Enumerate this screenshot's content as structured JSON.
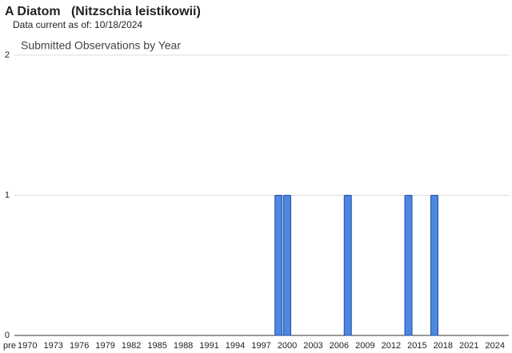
{
  "chart_data": {
    "type": "bar",
    "title": "A Diatom   (Nitzschia leistikowii)",
    "subtitle": "Data current as of: 10/18/2024",
    "chart_title": "Submitted Observations by Year",
    "categories": [
      "pre",
      "1970",
      null,
      null,
      "1973",
      null,
      null,
      "1976",
      null,
      null,
      "1979",
      null,
      null,
      "1982",
      null,
      null,
      "1985",
      null,
      null,
      "1988",
      null,
      null,
      "1991",
      null,
      null,
      "1994",
      null,
      null,
      "1997",
      null,
      null,
      "2000",
      null,
      null,
      "2003",
      null,
      null,
      "2006",
      null,
      null,
      "2009",
      null,
      null,
      "2012",
      null,
      null,
      "2015",
      null,
      null,
      "2018",
      null,
      null,
      "2021",
      null,
      null,
      "2024",
      null
    ],
    "values": [
      0,
      0,
      0,
      0,
      0,
      0,
      0,
      0,
      0,
      0,
      0,
      0,
      0,
      0,
      0,
      0,
      0,
      0,
      0,
      0,
      0,
      0,
      0,
      0,
      0,
      0,
      0,
      0,
      0,
      0,
      1,
      1,
      0,
      0,
      0,
      0,
      0,
      0,
      1,
      0,
      0,
      0,
      0,
      0,
      0,
      1,
      0,
      0,
      1,
      0,
      0,
      0,
      0,
      0,
      0,
      0,
      0
    ],
    "color": "#4d87e0",
    "ylim": [
      0,
      2
    ],
    "yticks": [
      0,
      1,
      2
    ],
    "grid": true
  }
}
